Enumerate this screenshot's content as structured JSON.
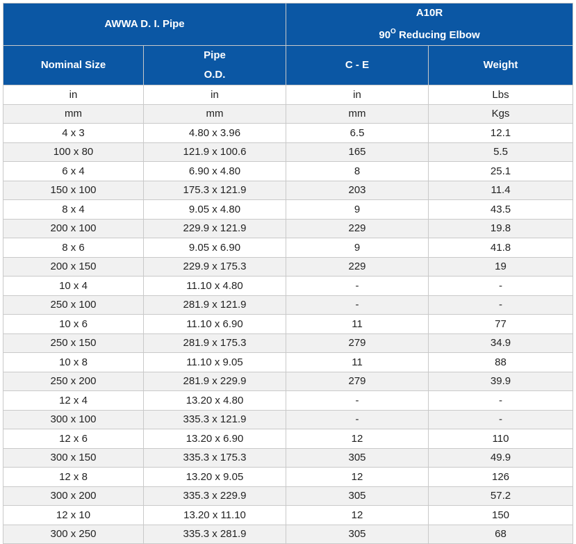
{
  "header": {
    "group_left": "AWWA D. I. Pipe",
    "group_right_line1": "A10R",
    "group_right_line2_prefix": "90",
    "group_right_line2_sup": "O",
    "group_right_line2_suffix": " Reducing Elbow",
    "col_nominal": "Nominal Size",
    "col_pipe_line1": "Pipe",
    "col_pipe_line2": "O.D.",
    "col_ce": "C - E",
    "col_weight": "Weight"
  },
  "units": [
    [
      "in",
      "in",
      "in",
      "Lbs"
    ],
    [
      "mm",
      "mm",
      "mm",
      "Kgs"
    ]
  ],
  "rows": [
    [
      "4 x 3",
      "4.80 x 3.96",
      "6.5",
      "12.1"
    ],
    [
      "100 x 80",
      "121.9 x 100.6",
      "165",
      "5.5"
    ],
    [
      "6 x 4",
      "6.90 x 4.80",
      "8",
      "25.1"
    ],
    [
      "150 x 100",
      "175.3 x 121.9",
      "203",
      "11.4"
    ],
    [
      "8 x 4",
      "9.05 x 4.80",
      "9",
      "43.5"
    ],
    [
      "200 x 100",
      "229.9 x 121.9",
      "229",
      "19.8"
    ],
    [
      "8 x 6",
      "9.05 x 6.90",
      "9",
      "41.8"
    ],
    [
      "200 x 150",
      "229.9 x 175.3",
      "229",
      "19"
    ],
    [
      "10 x 4",
      "11.10 x 4.80",
      "-",
      "-"
    ],
    [
      "250 x 100",
      "281.9 x 121.9",
      "-",
      "-"
    ],
    [
      "10 x 6",
      "11.10 x 6.90",
      "11",
      "77"
    ],
    [
      "250 x 150",
      "281.9 x 175.3",
      "279",
      "34.9"
    ],
    [
      "10 x 8",
      "11.10 x 9.05",
      "11",
      "88"
    ],
    [
      "250 x 200",
      "281.9 x 229.9",
      "279",
      "39.9"
    ],
    [
      "12 x 4",
      "13.20 x 4.80",
      "-",
      "-"
    ],
    [
      "300 x 100",
      "335.3 x 121.9",
      "-",
      "-"
    ],
    [
      "12 x 6",
      "13.20 x 6.90",
      "12",
      "110"
    ],
    [
      "300 x 150",
      "335.3 x 175.3",
      "305",
      "49.9"
    ],
    [
      "12 x 8",
      "13.20 x 9.05",
      "12",
      "126"
    ],
    [
      "300 x 200",
      "335.3 x 229.9",
      "305",
      "57.2"
    ],
    [
      "12 x 10",
      "13.20 x 11.10",
      "12",
      "150"
    ],
    [
      "300 x 250",
      "335.3 x 281.9",
      "305",
      "68"
    ]
  ]
}
